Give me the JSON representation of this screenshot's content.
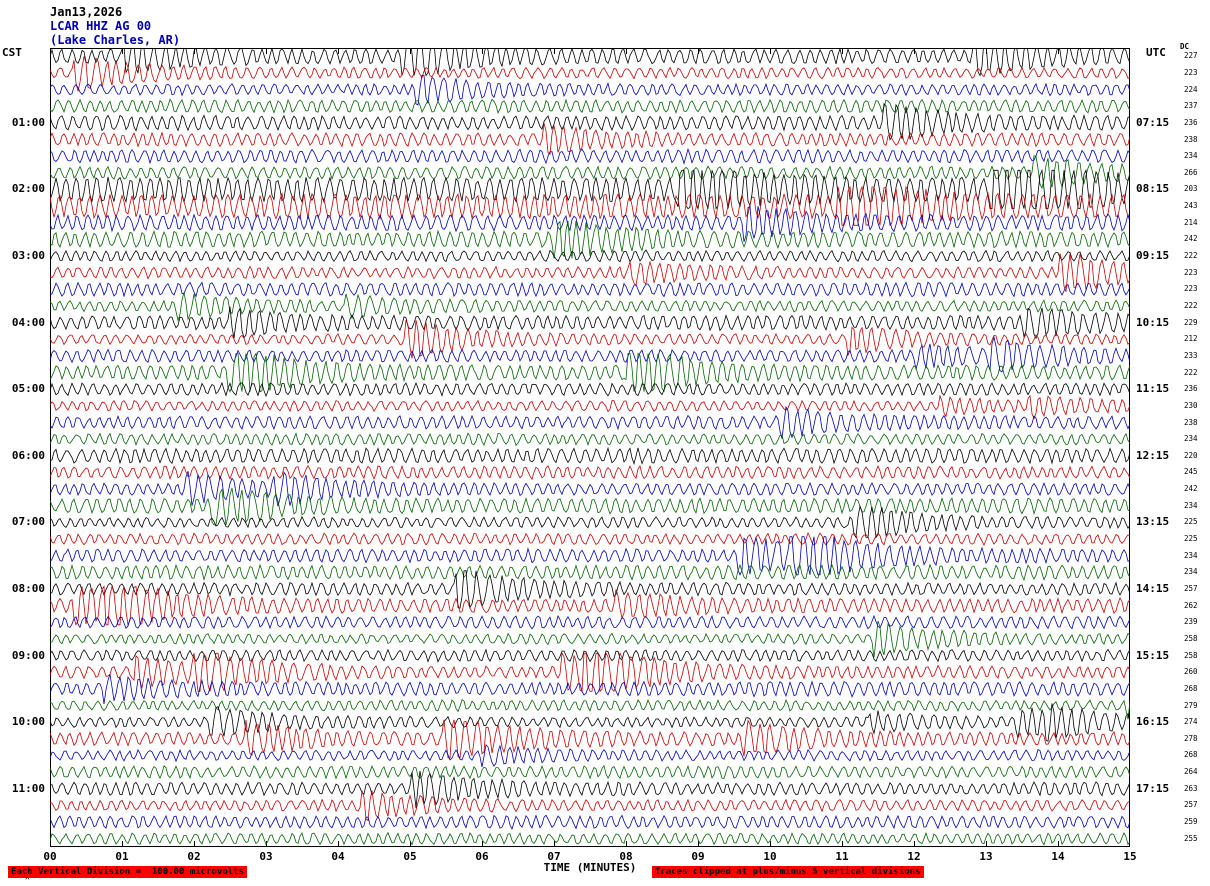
{
  "header": {
    "date": "Jan13,2026",
    "station": "LCAR HHZ AG 00",
    "location": "(Lake Charles, AR)"
  },
  "axes": {
    "left_tz": "CST",
    "right_tz": "UTC",
    "dc_label": "DC",
    "x_label": "TIME (MINUTES)",
    "x_ticks": [
      "00",
      "01",
      "02",
      "03",
      "04",
      "05",
      "06",
      "07",
      "08",
      "09",
      "10",
      "11",
      "12",
      "13",
      "14",
      "15"
    ]
  },
  "rows": {
    "count": 48,
    "left_labels": [
      {
        "row": 4,
        "text": "01:00"
      },
      {
        "row": 8,
        "text": "02:00"
      },
      {
        "row": 12,
        "text": "03:00"
      },
      {
        "row": 16,
        "text": "04:00"
      },
      {
        "row": 20,
        "text": "05:00"
      },
      {
        "row": 24,
        "text": "06:00"
      },
      {
        "row": 28,
        "text": "07:00"
      },
      {
        "row": 32,
        "text": "08:00"
      },
      {
        "row": 36,
        "text": "09:00"
      },
      {
        "row": 40,
        "text": "10:00"
      },
      {
        "row": 44,
        "text": "11:00"
      }
    ],
    "right_labels": [
      {
        "row": 4,
        "text": "07:15"
      },
      {
        "row": 8,
        "text": "08:15"
      },
      {
        "row": 12,
        "text": "09:15"
      },
      {
        "row": 16,
        "text": "10:15"
      },
      {
        "row": 20,
        "text": "11:15"
      },
      {
        "row": 24,
        "text": "12:15"
      },
      {
        "row": 28,
        "text": "13:15"
      },
      {
        "row": 32,
        "text": "14:15"
      },
      {
        "row": 36,
        "text": "15:15"
      },
      {
        "row": 40,
        "text": "16:15"
      },
      {
        "row": 44,
        "text": "17:15"
      }
    ],
    "dc_values": [
      "227",
      "223",
      "224",
      "237",
      "236",
      "238",
      "234",
      "266",
      "203",
      "243",
      "214",
      "242",
      "222",
      "223",
      "223",
      "222",
      "229",
      "212",
      "233",
      "222",
      "236",
      "230",
      "238",
      "234",
      "220",
      "245",
      "242",
      "234",
      "225",
      "225",
      "234",
      "234",
      "257",
      "262",
      "239",
      "258",
      "258",
      "260",
      "268",
      "279",
      "274",
      "278",
      "268",
      "264",
      "263",
      "257",
      "259",
      "255"
    ]
  },
  "footer": {
    "scale_text": "Each Vertical Division =  100.00 microvolts",
    "clip_text": "Traces clipped at plus/minus 5 vertical divisions",
    "corner_mark": "^"
  },
  "colors": {
    "trace_cycle": [
      "#000000",
      "#cc0000",
      "#0000bb",
      "#006600"
    ],
    "highlight": "#ff0000"
  },
  "chart_data": {
    "type": "line",
    "subtype": "helicorder-seismogram",
    "title": "LCAR HHZ AG 00 (Lake Charles, AR) Jan13,2026",
    "xlabel": "TIME (MINUTES)",
    "x_range": [
      0,
      15
    ],
    "x_ticks": [
      "00",
      "01",
      "02",
      "03",
      "04",
      "05",
      "06",
      "07",
      "08",
      "09",
      "10",
      "11",
      "12",
      "13",
      "14",
      "15"
    ],
    "minutes_per_line": 15,
    "lines": 48,
    "line_color_cycle": [
      "black",
      "red",
      "blue",
      "green"
    ],
    "left_axis_timezone": "CST",
    "right_axis_timezone": "UTC",
    "left_axis_hour_labels_cst": [
      "01:00",
      "02:00",
      "03:00",
      "04:00",
      "05:00",
      "06:00",
      "07:00",
      "08:00",
      "09:00",
      "10:00",
      "11:00"
    ],
    "right_axis_hour_labels_utc": [
      "07:15",
      "08:15",
      "09:15",
      "10:15",
      "11:15",
      "12:15",
      "13:15",
      "14:15",
      "15:15",
      "16:15",
      "17:15"
    ],
    "dc_offsets_per_line": [
      227,
      223,
      224,
      237,
      236,
      238,
      234,
      266,
      203,
      243,
      214,
      242,
      222,
      223,
      223,
      222,
      229,
      212,
      233,
      222,
      236,
      230,
      238,
      234,
      220,
      245,
      242,
      234,
      225,
      225,
      234,
      234,
      257,
      262,
      239,
      258,
      258,
      260,
      268,
      279,
      274,
      278,
      268,
      264,
      263,
      257,
      259,
      255
    ],
    "high_activity_lines": [
      8,
      9,
      10,
      11
    ],
    "scale": "Each Vertical Division = 100.00 microvolts",
    "clipping": "Traces clipped at plus/minus 5 vertical divisions",
    "waveform_note": "Continuous high-frequency seismic background noise filling every 15-minute line; amplitudes roughly 1-5 vertical divisions with an elevated-amplitude interval around 02:00-03:00 CST; individual sample values are not readable from the image and are rendered as representative noise."
  }
}
